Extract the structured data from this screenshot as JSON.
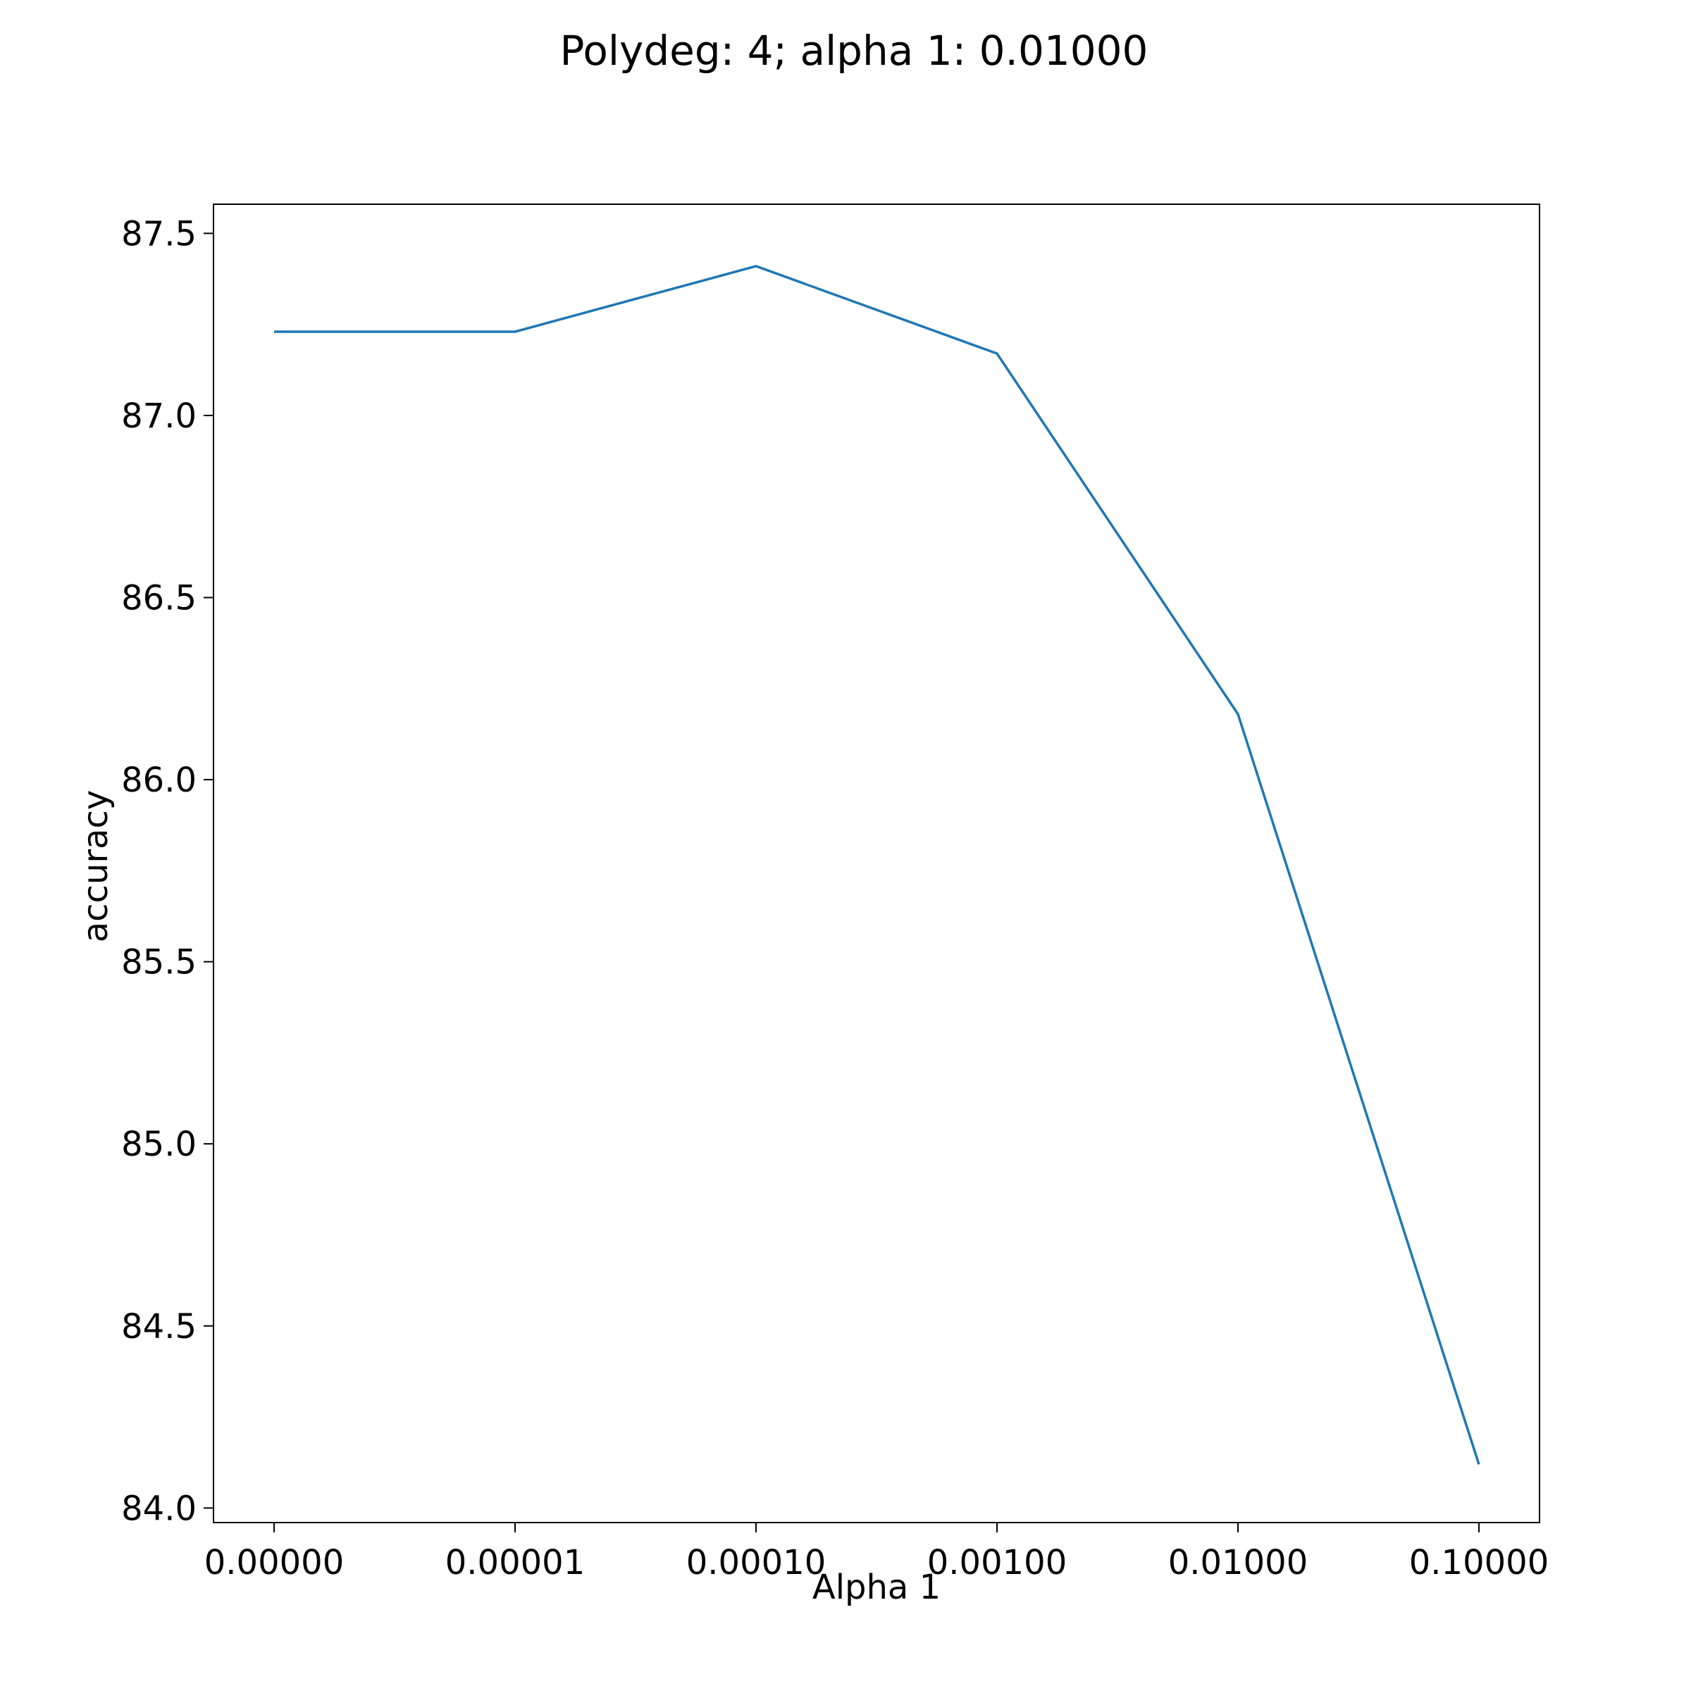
{
  "chart_data": {
    "type": "line",
    "title": "Polydeg: 4; alpha 1: 0.01000",
    "xlabel": "Alpha 1",
    "ylabel": "accuracy",
    "categories": [
      "0.00000",
      "0.00001",
      "0.00010",
      "0.00100",
      "0.01000",
      "0.10000"
    ],
    "series": [
      {
        "values": [
          87.23,
          87.23,
          87.41,
          87.17,
          86.18,
          84.12
        ],
        "color": "#1f77b4"
      }
    ],
    "ylim": [
      83.96,
      87.58
    ],
    "yticks": [
      "84.0",
      "84.5",
      "85.0",
      "85.5",
      "86.0",
      "86.5",
      "87.0",
      "87.5"
    ],
    "grid": false,
    "legend": "none"
  }
}
